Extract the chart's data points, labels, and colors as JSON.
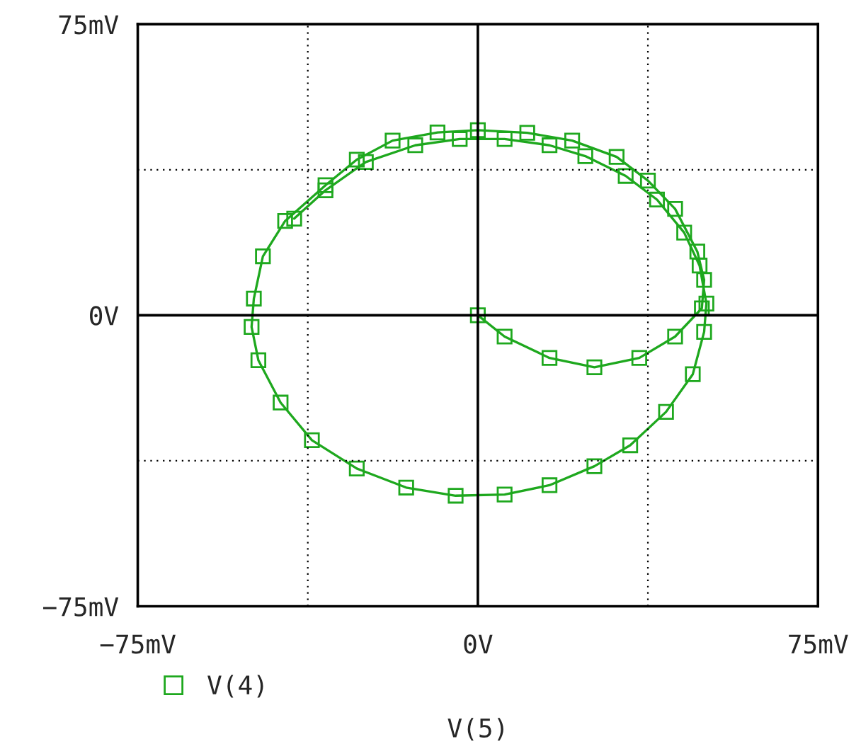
{
  "chart_data": {
    "type": "line",
    "xlabel": "V(5)",
    "series": [
      {
        "name": "V(4)",
        "color": "#1ea81e",
        "x": [
          0,
          5.9,
          15.8,
          25.7,
          35.6,
          43.5,
          49.4,
          49.9,
          48.4,
          43.5,
          37.5,
          30.6,
          20.8,
          10.9,
          0,
          -8.9,
          -18.8,
          -26.7,
          -33.6,
          -42.5,
          -47.4,
          -49.4,
          -49.9,
          -48.4,
          -43.5,
          -36.6,
          -26.7,
          -15.8,
          -4.9,
          5.9,
          15.8,
          25.7,
          33.6,
          41.5,
          47.4,
          49.9,
          50.4,
          48.9,
          45.5,
          39.5,
          32.6,
          23.7,
          15.8,
          5.9,
          -4,
          -13.8,
          -24.7,
          -33.6,
          -40.5
        ],
        "values": [
          0,
          -5.5,
          -11,
          -13.4,
          -11,
          -5.5,
          1.8,
          9.1,
          16.4,
          27.4,
          34.7,
          40.8,
          45,
          47,
          47.7,
          47.1,
          45,
          40.1,
          33.5,
          24.3,
          15.2,
          4.3,
          -3,
          -11.6,
          -22.5,
          -32.2,
          -39.5,
          -44.4,
          -46.5,
          -46.2,
          -43.8,
          -38.9,
          -33.5,
          -24.9,
          -15.2,
          -4.3,
          3,
          12.8,
          21.3,
          29.8,
          35.9,
          41,
          43.8,
          45.4,
          45.4,
          43.8,
          39.5,
          32.2,
          24.9
        ]
      }
    ],
    "xlim": [
      -75,
      75
    ],
    "ylim": [
      -75,
      75
    ],
    "xticks": [
      {
        "value": -75,
        "label": "−75mV"
      },
      {
        "value": -37.5,
        "label": null
      },
      {
        "value": 0,
        "label": "0V"
      },
      {
        "value": 37.5,
        "label": null
      },
      {
        "value": 75,
        "label": "75mV"
      }
    ],
    "yticks": [
      {
        "value": -75,
        "label": "−75mV"
      },
      {
        "value": -37.5,
        "label": null
      },
      {
        "value": 0,
        "label": "0V"
      },
      {
        "value": 37.5,
        "label": null
      },
      {
        "value": 75,
        "label": "75mV"
      }
    ],
    "grid": true,
    "marker": "square",
    "line_style": "solid",
    "legend": "bottom left"
  }
}
